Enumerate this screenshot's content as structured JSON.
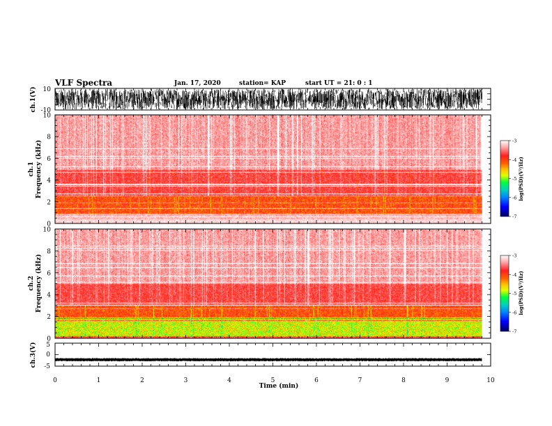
{
  "header": {
    "title": "VLF Spectra",
    "date": "Jan. 17, 2020",
    "station": "station= KAP",
    "start": "start UT =  21: 0 : 1"
  },
  "colors": {
    "spectrogram_base": "#ff1010",
    "colormap": [
      "#000080",
      "#0000ff",
      "#00a0ff",
      "#00ff40",
      "#c0ff00",
      "#ffff00",
      "#ff8000",
      "#ff0000",
      "#ffffff"
    ]
  },
  "chart_data": [
    {
      "id": "ch1_waveform",
      "type": "line",
      "ylabel": "ch.1(V)",
      "ylim": [
        -10,
        10
      ],
      "yticklabels": [
        "10",
        "-10"
      ],
      "xlim": [
        0,
        10
      ],
      "description_values": {
        "envelope_upper": 9.5,
        "envelope_lower": -9.5,
        "dense_noise": true
      }
    },
    {
      "id": "ch1_spectrogram",
      "type": "heatmap",
      "ylabel": "ch.1\nFrequency (kHz)",
      "ylabel_lines": [
        "ch.1",
        "Frequency (kHz)"
      ],
      "ylim": [
        0,
        10
      ],
      "yticks": [
        0,
        2,
        4,
        6,
        8,
        10
      ],
      "xlim": [
        0,
        10
      ],
      "data_extent_min": 9.8,
      "colorbar": {
        "label": "log(PSD)(V²/Hz)",
        "ticks": [
          -3,
          -4,
          -5,
          -6,
          -7
        ],
        "range": [
          -7,
          -3
        ]
      },
      "typical_logpsd": {
        "low_band_0.8_2.5kHz": -4.2,
        "above_5kHz": -3.6
      }
    },
    {
      "id": "ch2_spectrogram",
      "type": "heatmap",
      "ylabel_lines": [
        "ch.2",
        "Frequency (kHz)"
      ],
      "ylim": [
        0,
        10
      ],
      "yticks": [
        0,
        2,
        4,
        6,
        8,
        10
      ],
      "xlim": [
        0,
        10
      ],
      "data_extent_min": 9.8,
      "colorbar": {
        "label": "log(PSD)(V²/Hz)",
        "ticks": [
          -3,
          -4,
          -5,
          -6,
          -7
        ],
        "range": [
          -7,
          -3
        ]
      },
      "typical_logpsd": {
        "low_band_0.3_2kHz": -4.8,
        "above_5kHz": -3.6
      }
    },
    {
      "id": "ch3_waveform",
      "type": "line",
      "ylabel": "ch.3(V)",
      "ylim": [
        -5,
        5
      ],
      "yticklabels": [
        "5",
        "0",
        "-5"
      ],
      "xlim": [
        0,
        10
      ],
      "xlabel": "Time (min)",
      "xticks": [
        0,
        1,
        2,
        3,
        4,
        5,
        6,
        7,
        8,
        9,
        10
      ],
      "description_values": {
        "band_center": -2.2,
        "band_halfwidth": 0.6
      }
    }
  ]
}
